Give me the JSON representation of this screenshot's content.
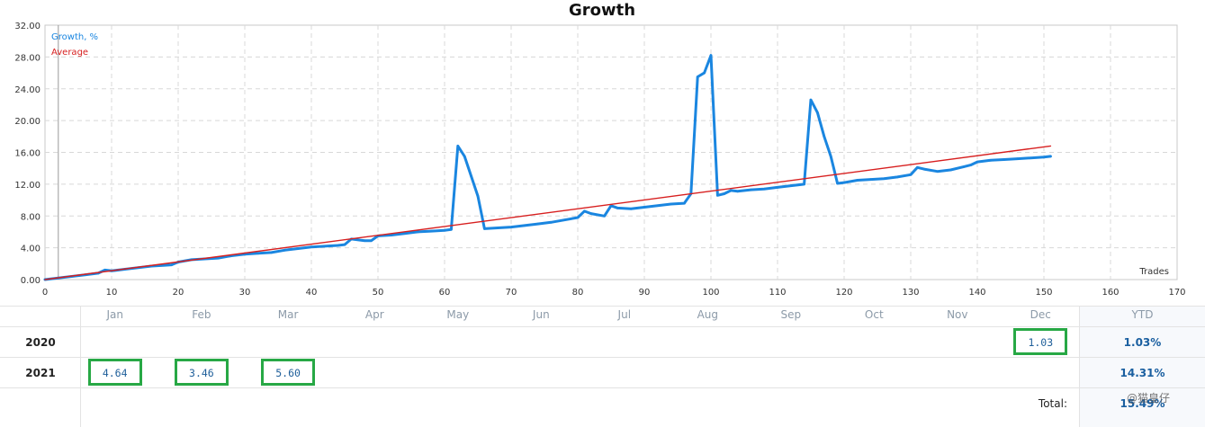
{
  "chart_data": {
    "type": "line",
    "title": "Growth",
    "xlabel": "Trades",
    "ylabel": "",
    "xlim": [
      0,
      170
    ],
    "ylim": [
      0,
      32
    ],
    "x_ticks": [
      0,
      10,
      20,
      30,
      40,
      50,
      60,
      70,
      80,
      90,
      100,
      110,
      120,
      130,
      140,
      150,
      160,
      170
    ],
    "y_ticks": [
      "0.00",
      "4.00",
      "8.00",
      "12.00",
      "16.00",
      "20.00",
      "24.00",
      "28.00",
      "32.00"
    ],
    "month_labels": [
      {
        "label": "Jan",
        "x": 10.5
      },
      {
        "label": "Feb",
        "x": 23.5
      },
      {
        "label": "Mar",
        "x": 36.5
      },
      {
        "label": "Apr",
        "x": 49.5
      },
      {
        "label": "May",
        "x": 62
      },
      {
        "label": "Jun",
        "x": 74.5
      },
      {
        "label": "Jul",
        "x": 87
      },
      {
        "label": "Aug",
        "x": 99.5
      },
      {
        "label": "Sep",
        "x": 112
      },
      {
        "label": "Oct",
        "x": 124.5
      },
      {
        "label": "Nov",
        "x": 137
      },
      {
        "label": "Dec",
        "x": 149.5
      }
    ],
    "grid": true,
    "legend": "top-left",
    "series": [
      {
        "name": "Growth, %",
        "color": "#1a86e0",
        "x": [
          0,
          2,
          4,
          6,
          8,
          9,
          10,
          12,
          14,
          16,
          18,
          19,
          20,
          22,
          24,
          26,
          28,
          30,
          32,
          34,
          36,
          38,
          40,
          42,
          44,
          45,
          46,
          48,
          49,
          50,
          52,
          54,
          56,
          58,
          60,
          61,
          62,
          63,
          64,
          65,
          66,
          68,
          70,
          72,
          74,
          76,
          78,
          80,
          81,
          82,
          84,
          85,
          86,
          88,
          90,
          92,
          94,
          96,
          97,
          98,
          99,
          100,
          101,
          102,
          103,
          104,
          106,
          108,
          110,
          112,
          114,
          115,
          116,
          117,
          118,
          119,
          120,
          122,
          124,
          126,
          128,
          130,
          131,
          132,
          134,
          136,
          138,
          139,
          140,
          142,
          144,
          146,
          148,
          150,
          151
        ],
        "y": [
          0,
          0.2,
          0.4,
          0.6,
          0.8,
          1.2,
          1.1,
          1.3,
          1.5,
          1.7,
          1.8,
          1.85,
          2.2,
          2.5,
          2.6,
          2.7,
          3.0,
          3.2,
          3.3,
          3.4,
          3.7,
          3.9,
          4.1,
          4.2,
          4.3,
          4.4,
          5.1,
          4.9,
          4.9,
          5.5,
          5.6,
          5.8,
          6.0,
          6.1,
          6.2,
          6.3,
          16.8,
          15.5,
          13.0,
          10.5,
          6.4,
          6.5,
          6.6,
          6.8,
          7.0,
          7.2,
          7.5,
          7.8,
          8.6,
          8.3,
          8.0,
          9.3,
          9.0,
          8.9,
          9.1,
          9.3,
          9.5,
          9.6,
          10.8,
          25.5,
          26.0,
          28.2,
          10.6,
          10.8,
          11.2,
          11.1,
          11.3,
          11.4,
          11.6,
          11.8,
          12.0,
          22.6,
          21.0,
          18.0,
          15.5,
          12.1,
          12.2,
          12.5,
          12.6,
          12.7,
          12.9,
          13.2,
          14.1,
          13.9,
          13.6,
          13.8,
          14.2,
          14.4,
          14.8,
          15.0,
          15.1,
          15.2,
          15.3,
          15.4,
          15.5
        ]
      },
      {
        "name": "Average",
        "color": "#d71f1f",
        "x": [
          0,
          151
        ],
        "y": [
          0,
          16.8
        ]
      }
    ]
  },
  "table": {
    "months": [
      "Jan",
      "Feb",
      "Mar",
      "Apr",
      "May",
      "Jun",
      "Jul",
      "Aug",
      "Sep",
      "Oct",
      "Nov",
      "Dec"
    ],
    "ytd_header": "YTD",
    "rows": [
      {
        "year": "2020",
        "values": [
          "",
          "",
          "",
          "",
          "",
          "",
          "",
          "",
          "",
          "",
          "",
          "1.03"
        ],
        "ytd": "1.03%"
      },
      {
        "year": "2021",
        "values": [
          "4.64",
          "3.46",
          "5.60",
          "",
          "",
          "",
          "",
          "",
          "",
          "",
          "",
          ""
        ],
        "ytd": "14.31%"
      }
    ],
    "total_label": "Total:",
    "total_value": "15.49%",
    "highlight_color": "#27a845"
  },
  "watermark": "@猫皇仔"
}
